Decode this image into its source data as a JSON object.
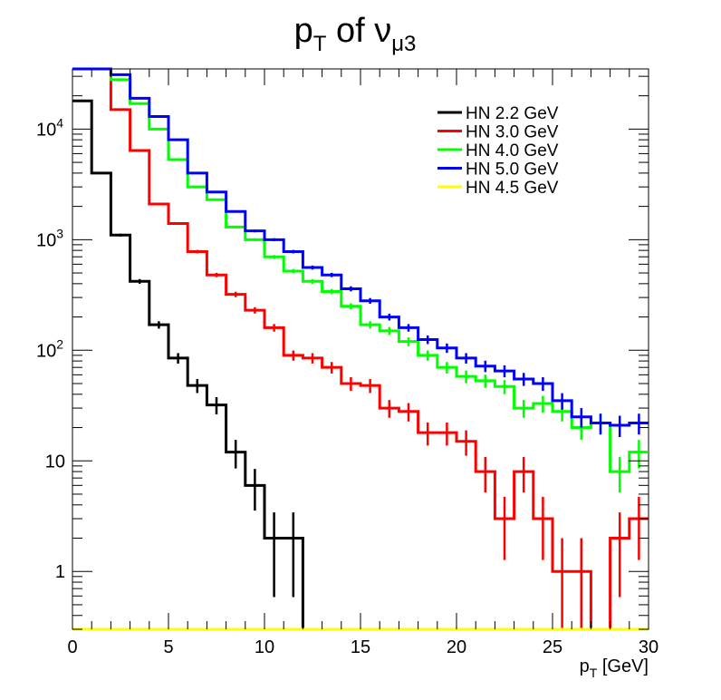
{
  "chart_data": {
    "type": "line",
    "step": true,
    "title_main": "p",
    "title_sub": "T",
    "title_mid": " of ν",
    "title_sub2": "μ3",
    "xlabel_main": "p",
    "xlabel_sub": "T",
    "xlabel_rest": " [GeV]",
    "xlim": [
      0,
      30
    ],
    "ylim": [
      0.3,
      35000
    ],
    "yscale": "log",
    "x_ticks": [
      0,
      5,
      10,
      15,
      20,
      25,
      30
    ],
    "x_tick_labels": [
      "0",
      "5",
      "10",
      "15",
      "20",
      "25",
      "30"
    ],
    "y_ticks": [
      1,
      10,
      100,
      1000,
      10000
    ],
    "y_tick_labels": [
      {
        "base": "1",
        "exp": ""
      },
      {
        "base": "10",
        "exp": ""
      },
      {
        "base": "10",
        "exp": "2"
      },
      {
        "base": "10",
        "exp": "3"
      },
      {
        "base": "10",
        "exp": "4"
      }
    ],
    "bin_edges": [
      0,
      1,
      2,
      3,
      4,
      5,
      6,
      7,
      8,
      9,
      10,
      11,
      12,
      13,
      14,
      15,
      16,
      17,
      18,
      19,
      20,
      21,
      22,
      23,
      24,
      25,
      26,
      27,
      28,
      29,
      30
    ],
    "legend_position": "top-right",
    "series": [
      {
        "name": "HN 2.2 GeV",
        "color": "#000000",
        "values": [
          18000,
          4000,
          1100,
          420,
          170,
          85,
          48,
          32,
          12,
          6,
          2,
          2,
          0,
          0,
          0,
          0,
          0,
          0,
          0,
          0,
          0,
          0,
          0,
          0,
          0,
          0,
          0,
          0,
          0,
          0
        ]
      },
      {
        "name": "HN 3.0 GeV",
        "color": "#ff0000",
        "values": [
          35000,
          35000,
          15000,
          6400,
          2100,
          1400,
          780,
          480,
          320,
          230,
          160,
          90,
          85,
          70,
          50,
          48,
          30,
          28,
          18,
          18,
          15,
          8,
          3,
          8,
          3,
          1,
          1,
          0,
          2,
          3
        ]
      },
      {
        "name": "HN 4.0 GeV",
        "color": "#00ff00",
        "values": [
          35000,
          35000,
          28000,
          17000,
          10000,
          5300,
          3000,
          2300,
          1300,
          1000,
          700,
          520,
          420,
          340,
          250,
          170,
          150,
          120,
          90,
          70,
          58,
          53,
          47,
          30,
          33,
          28,
          20,
          22,
          8,
          12
        ]
      },
      {
        "name": "HN 5.0 GeV",
        "color": "#0000ff",
        "values": [
          35000,
          35000,
          31000,
          19000,
          13000,
          8000,
          4000,
          2700,
          1800,
          1200,
          1000,
          780,
          560,
          480,
          360,
          280,
          200,
          160,
          125,
          105,
          85,
          72,
          65,
          55,
          50,
          35,
          25,
          22,
          21,
          22
        ]
      },
      {
        "name": "HN 4.5 GeV",
        "color": "#ffff00",
        "values": [
          0,
          0,
          0,
          0,
          0,
          0,
          0,
          0,
          0,
          0,
          0,
          0,
          0,
          0,
          0,
          0,
          0,
          0,
          0,
          0,
          0,
          0,
          0,
          0,
          0,
          0,
          0,
          0,
          0,
          0
        ]
      }
    ]
  }
}
